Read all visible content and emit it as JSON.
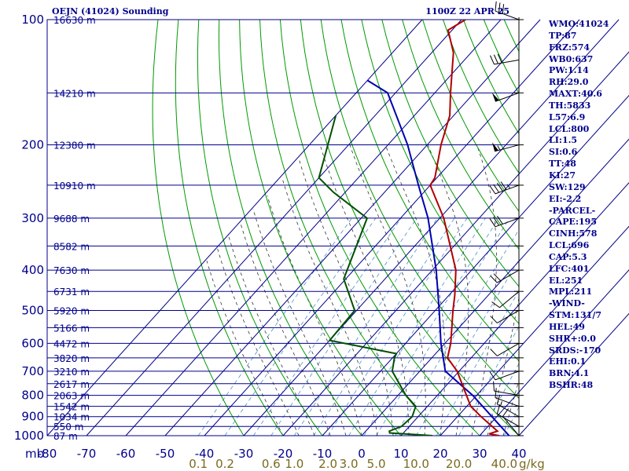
{
  "header": {
    "station_title": "OEJN (41024) Sounding",
    "time_title": "1100Z 22 APR 25"
  },
  "indices": [
    "WMO:41024",
    "TP:87",
    "FRZ:574",
    "WB0:637",
    "PW:1.14",
    "RH:29.0",
    "MAXT:40.6",
    "TH:5833",
    "L57:6.9",
    "LCL:800",
    "LI:1.5",
    "SI:0.6",
    "TT:48",
    "KI:27",
    "SW:129",
    "EI:-2.2",
    "-PARCEL-",
    "CAPE:195",
    "CINH:578",
    "LCL:696",
    "CAP:5.3",
    "LFC:401",
    "EL:251",
    "MPL:211",
    "-WIND-",
    "STM:131/7",
    "HEL:49",
    "SHR+:0.0",
    "SRDS:-170",
    "EHI:0.1",
    "BRN:4.1",
    "BSHR:48"
  ],
  "colors": {
    "background": "#ffffff",
    "grid": "#00008b",
    "dry_adiabat": "#009a00",
    "moist_adiabat": "#333333",
    "mixing_ratio": "#4a90c8",
    "temperature": "#b00000",
    "dewpoint": "#005000",
    "parcel": "#0000b0",
    "wind": "#000000",
    "mixing_label": "#7a6a20"
  },
  "chart_data": {
    "type": "skew-t",
    "pressure_axis": {
      "scale": "log",
      "range": [
        1000,
        100
      ],
      "unit": "mb",
      "tick_labels": [
        "100",
        "200",
        "300",
        "400",
        "500",
        "600",
        "700",
        "800",
        "900",
        "1000"
      ],
      "unit_label": "mb"
    },
    "temperature_axis": {
      "range": [
        -80,
        40
      ],
      "tick_labels": [
        "-80",
        "-70",
        "-60",
        "-50",
        "-40",
        "-30",
        "-20",
        "-10",
        "0",
        "10",
        "20",
        "30",
        "40"
      ]
    },
    "height_labels": [
      {
        "p": 100,
        "label": "16630 m"
      },
      {
        "p": 150,
        "label": "14210 m"
      },
      {
        "p": 200,
        "label": "12380 m"
      },
      {
        "p": 250,
        "label": "10910 m"
      },
      {
        "p": 300,
        "label": "9688 m"
      },
      {
        "p": 350,
        "label": "8582 m"
      },
      {
        "p": 400,
        "label": "7630 m"
      },
      {
        "p": 450,
        "label": "6731 m"
      },
      {
        "p": 500,
        "label": "5920 m"
      },
      {
        "p": 550,
        "label": "5166 m"
      },
      {
        "p": 600,
        "label": "4472 m"
      },
      {
        "p": 650,
        "label": "3820 m"
      },
      {
        "p": 700,
        "label": "3210 m"
      },
      {
        "p": 750,
        "label": "2617 m"
      },
      {
        "p": 800,
        "label": "2063 m"
      },
      {
        "p": 850,
        "label": "1542 m"
      },
      {
        "p": 900,
        "label": "1034 m"
      },
      {
        "p": 950,
        "label": "550 m"
      },
      {
        "p": 1000,
        "label": "87 m"
      }
    ],
    "mixing_ratio_labels": [
      {
        "w": 0.1,
        "label": "0.1"
      },
      {
        "w": 0.2,
        "label": "0.2"
      },
      {
        "w": 0.6,
        "label": "0.6"
      },
      {
        "w": 1.0,
        "label": "1.0"
      },
      {
        "w": 2.0,
        "label": "2.0"
      },
      {
        "w": 3.0,
        "label": "3.0"
      },
      {
        "w": 5.0,
        "label": "5.0"
      },
      {
        "w": 10.0,
        "label": "10.0"
      },
      {
        "w": 20.0,
        "label": "20.0"
      },
      {
        "w": 40.0,
        "label": "40.0"
      }
    ],
    "mixing_unit_label": "g/kg",
    "temperature_profile": [
      {
        "p": 1000,
        "t": 35.0
      },
      {
        "p": 990,
        "t": 32.0
      },
      {
        "p": 975,
        "t": 33.5
      },
      {
        "p": 900,
        "t": 26.0
      },
      {
        "p": 850,
        "t": 21.0
      },
      {
        "p": 700,
        "t": 9.5
      },
      {
        "p": 650,
        "t": 4.0
      },
      {
        "p": 600,
        "t": 1.5
      },
      {
        "p": 500,
        "t": -5.5
      },
      {
        "p": 460,
        "t": -8.5
      },
      {
        "p": 400,
        "t": -14.0
      },
      {
        "p": 300,
        "t": -29.0
      },
      {
        "p": 250,
        "t": -40.0
      },
      {
        "p": 240,
        "t": -40.5
      },
      {
        "p": 200,
        "t": -46.5
      },
      {
        "p": 170,
        "t": -51.0
      },
      {
        "p": 150,
        "t": -56.0
      },
      {
        "p": 120,
        "t": -64.5
      },
      {
        "p": 106,
        "t": -71.0
      },
      {
        "p": 100,
        "t": -69.0
      }
    ],
    "dewpoint_profile": [
      {
        "p": 1000,
        "t": 18.0
      },
      {
        "p": 985,
        "t": 6.5
      },
      {
        "p": 975,
        "t": 6.0
      },
      {
        "p": 950,
        "t": 8.0
      },
      {
        "p": 900,
        "t": 8.5
      },
      {
        "p": 850,
        "t": 7.0
      },
      {
        "p": 800,
        "t": 2.0
      },
      {
        "p": 700,
        "t": -7.0
      },
      {
        "p": 650,
        "t": -9.5
      },
      {
        "p": 635,
        "t": -10.0
      },
      {
        "p": 590,
        "t": -30.0
      },
      {
        "p": 500,
        "t": -30.5
      },
      {
        "p": 420,
        "t": -40.5
      },
      {
        "p": 300,
        "t": -48.5
      },
      {
        "p": 260,
        "t": -63.0
      },
      {
        "p": 240,
        "t": -70.0
      },
      {
        "p": 170,
        "t": -80.0
      }
    ],
    "parcel_profile": [
      {
        "p": 1000,
        "t": 37.5
      },
      {
        "p": 800,
        "t": 19.0
      },
      {
        "p": 700,
        "t": 6.5
      },
      {
        "p": 600,
        "t": -1.0
      },
      {
        "p": 500,
        "t": -9.0
      },
      {
        "p": 400,
        "t": -19.0
      },
      {
        "p": 300,
        "t": -33.0
      },
      {
        "p": 250,
        "t": -43.0
      },
      {
        "p": 200,
        "t": -55.0
      },
      {
        "p": 150,
        "t": -72.0
      },
      {
        "p": 140,
        "t": -80.0
      }
    ],
    "winds": [
      {
        "p": 1000,
        "dir": 320,
        "spd": 10
      },
      {
        "p": 950,
        "dir": 300,
        "spd": 10
      },
      {
        "p": 900,
        "dir": 300,
        "spd": 15
      },
      {
        "p": 850,
        "dir": 290,
        "spd": 10
      },
      {
        "p": 800,
        "dir": 280,
        "spd": 10
      },
      {
        "p": 700,
        "dir": 250,
        "spd": 10
      },
      {
        "p": 600,
        "dir": 240,
        "spd": 10
      },
      {
        "p": 500,
        "dir": 240,
        "spd": 10
      },
      {
        "p": 450,
        "dir": 230,
        "spd": 10
      },
      {
        "p": 400,
        "dir": 240,
        "spd": 20
      },
      {
        "p": 300,
        "dir": 250,
        "spd": 30
      },
      {
        "p": 250,
        "dir": 250,
        "spd": 45
      },
      {
        "p": 200,
        "dir": 255,
        "spd": 55
      },
      {
        "p": 150,
        "dir": 250,
        "spd": 50
      },
      {
        "p": 125,
        "dir": 260,
        "spd": 30
      },
      {
        "p": 100,
        "dir": 290,
        "spd": 30
      }
    ]
  }
}
